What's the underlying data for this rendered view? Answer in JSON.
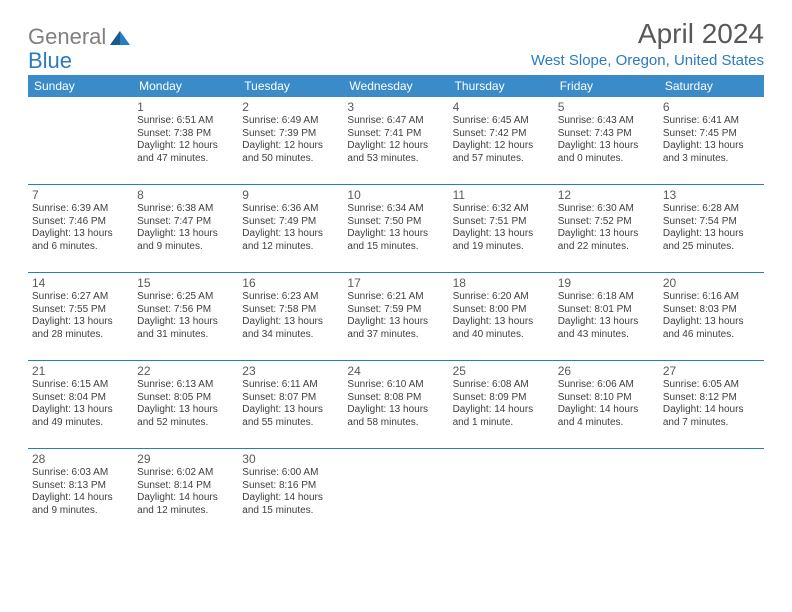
{
  "logo": {
    "gray": "General",
    "blue": "Blue"
  },
  "title": "April 2024",
  "location": "West Slope, Oregon, United States",
  "colors": {
    "header_bg": "#3b8bc9",
    "accent": "#2b7bbf",
    "text_gray": "#595959",
    "body_text": "#404040"
  },
  "weekdays": [
    "Sunday",
    "Monday",
    "Tuesday",
    "Wednesday",
    "Thursday",
    "Friday",
    "Saturday"
  ],
  "weeks": [
    [
      null,
      {
        "n": "1",
        "sr": "6:51 AM",
        "ss": "7:38 PM",
        "dl": "12 hours and 47 minutes."
      },
      {
        "n": "2",
        "sr": "6:49 AM",
        "ss": "7:39 PM",
        "dl": "12 hours and 50 minutes."
      },
      {
        "n": "3",
        "sr": "6:47 AM",
        "ss": "7:41 PM",
        "dl": "12 hours and 53 minutes."
      },
      {
        "n": "4",
        "sr": "6:45 AM",
        "ss": "7:42 PM",
        "dl": "12 hours and 57 minutes."
      },
      {
        "n": "5",
        "sr": "6:43 AM",
        "ss": "7:43 PM",
        "dl": "13 hours and 0 minutes."
      },
      {
        "n": "6",
        "sr": "6:41 AM",
        "ss": "7:45 PM",
        "dl": "13 hours and 3 minutes."
      }
    ],
    [
      {
        "n": "7",
        "sr": "6:39 AM",
        "ss": "7:46 PM",
        "dl": "13 hours and 6 minutes."
      },
      {
        "n": "8",
        "sr": "6:38 AM",
        "ss": "7:47 PM",
        "dl": "13 hours and 9 minutes."
      },
      {
        "n": "9",
        "sr": "6:36 AM",
        "ss": "7:49 PM",
        "dl": "13 hours and 12 minutes."
      },
      {
        "n": "10",
        "sr": "6:34 AM",
        "ss": "7:50 PM",
        "dl": "13 hours and 15 minutes."
      },
      {
        "n": "11",
        "sr": "6:32 AM",
        "ss": "7:51 PM",
        "dl": "13 hours and 19 minutes."
      },
      {
        "n": "12",
        "sr": "6:30 AM",
        "ss": "7:52 PM",
        "dl": "13 hours and 22 minutes."
      },
      {
        "n": "13",
        "sr": "6:28 AM",
        "ss": "7:54 PM",
        "dl": "13 hours and 25 minutes."
      }
    ],
    [
      {
        "n": "14",
        "sr": "6:27 AM",
        "ss": "7:55 PM",
        "dl": "13 hours and 28 minutes."
      },
      {
        "n": "15",
        "sr": "6:25 AM",
        "ss": "7:56 PM",
        "dl": "13 hours and 31 minutes."
      },
      {
        "n": "16",
        "sr": "6:23 AM",
        "ss": "7:58 PM",
        "dl": "13 hours and 34 minutes."
      },
      {
        "n": "17",
        "sr": "6:21 AM",
        "ss": "7:59 PM",
        "dl": "13 hours and 37 minutes."
      },
      {
        "n": "18",
        "sr": "6:20 AM",
        "ss": "8:00 PM",
        "dl": "13 hours and 40 minutes."
      },
      {
        "n": "19",
        "sr": "6:18 AM",
        "ss": "8:01 PM",
        "dl": "13 hours and 43 minutes."
      },
      {
        "n": "20",
        "sr": "6:16 AM",
        "ss": "8:03 PM",
        "dl": "13 hours and 46 minutes."
      }
    ],
    [
      {
        "n": "21",
        "sr": "6:15 AM",
        "ss": "8:04 PM",
        "dl": "13 hours and 49 minutes."
      },
      {
        "n": "22",
        "sr": "6:13 AM",
        "ss": "8:05 PM",
        "dl": "13 hours and 52 minutes."
      },
      {
        "n": "23",
        "sr": "6:11 AM",
        "ss": "8:07 PM",
        "dl": "13 hours and 55 minutes."
      },
      {
        "n": "24",
        "sr": "6:10 AM",
        "ss": "8:08 PM",
        "dl": "13 hours and 58 minutes."
      },
      {
        "n": "25",
        "sr": "6:08 AM",
        "ss": "8:09 PM",
        "dl": "14 hours and 1 minute."
      },
      {
        "n": "26",
        "sr": "6:06 AM",
        "ss": "8:10 PM",
        "dl": "14 hours and 4 minutes."
      },
      {
        "n": "27",
        "sr": "6:05 AM",
        "ss": "8:12 PM",
        "dl": "14 hours and 7 minutes."
      }
    ],
    [
      {
        "n": "28",
        "sr": "6:03 AM",
        "ss": "8:13 PM",
        "dl": "14 hours and 9 minutes."
      },
      {
        "n": "29",
        "sr": "6:02 AM",
        "ss": "8:14 PM",
        "dl": "14 hours and 12 minutes."
      },
      {
        "n": "30",
        "sr": "6:00 AM",
        "ss": "8:16 PM",
        "dl": "14 hours and 15 minutes."
      },
      null,
      null,
      null,
      null
    ]
  ],
  "labels": {
    "sunrise": "Sunrise:",
    "sunset": "Sunset:",
    "daylight": "Daylight:"
  }
}
